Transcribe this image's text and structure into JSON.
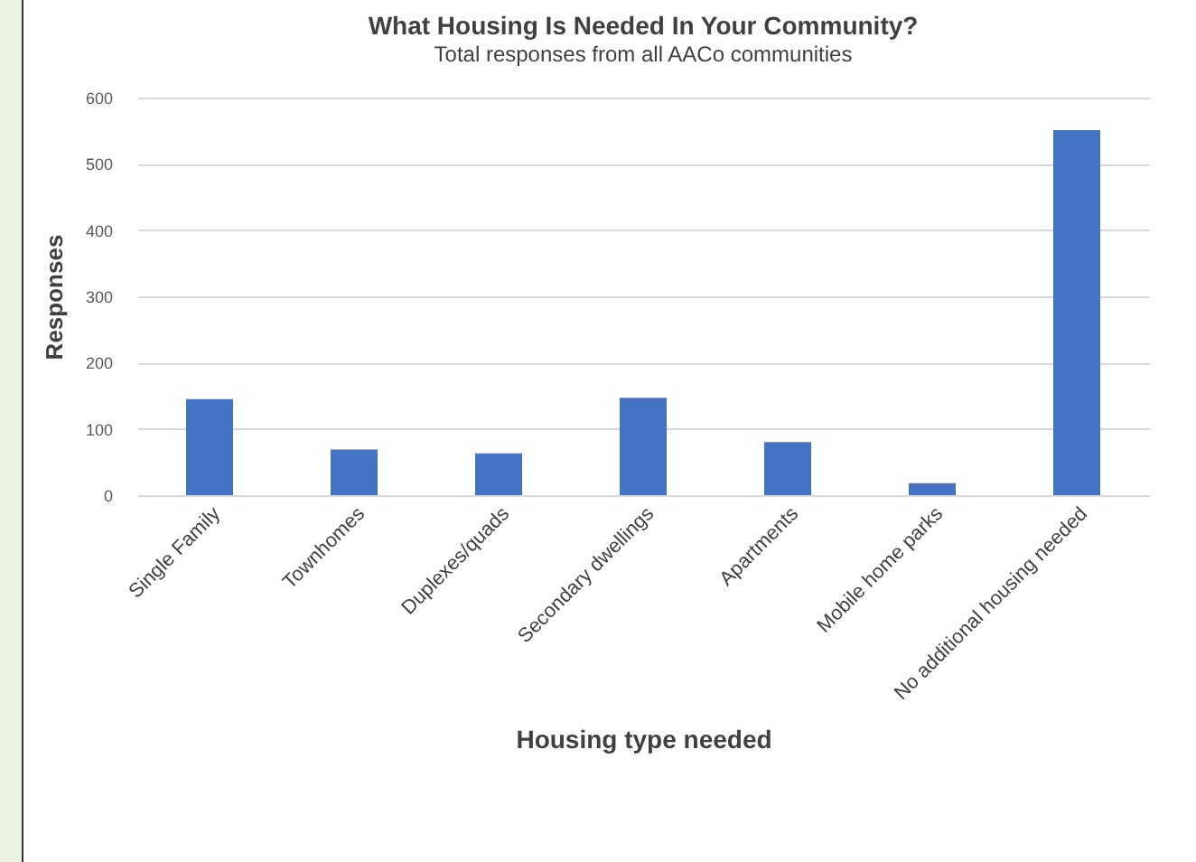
{
  "chart_data": {
    "type": "bar",
    "title": "What Housing Is Needed In Your Community?",
    "subtitle": "Total responses from all AACo communities",
    "xlabel": "Housing type needed",
    "ylabel": "Responses",
    "categories": [
      "Single Family",
      "Townhomes",
      "Duplexes/quads",
      "Secondary dwellings",
      "Apartments",
      "Mobile home parks",
      "No additional housing needed"
    ],
    "values": [
      145,
      69,
      63,
      147,
      80,
      18,
      551
    ],
    "color": "#4472c4",
    "ylim": [
      0,
      600
    ],
    "yticks": [
      0,
      100,
      200,
      300,
      400,
      500,
      600
    ],
    "grid": "y",
    "legend": false
  }
}
